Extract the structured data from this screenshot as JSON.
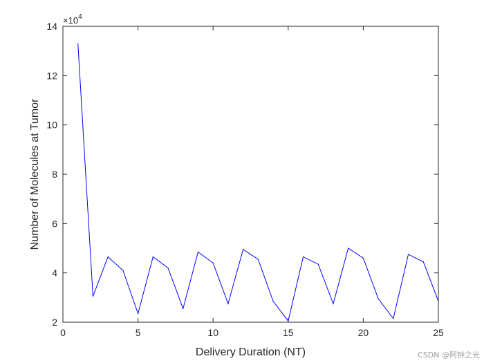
{
  "chart_data": {
    "type": "line",
    "title": "",
    "xlabel": "Delivery Duration (NT)",
    "ylabel": "Number of Molecules at Tumor",
    "y_exponent_label": "×10",
    "y_exponent_power": "4",
    "xlim": [
      0,
      25
    ],
    "ylim": [
      2,
      14
    ],
    "xticks": [
      0,
      5,
      10,
      15,
      20,
      25
    ],
    "yticks": [
      2,
      4,
      6,
      8,
      10,
      12,
      14
    ],
    "grid": false,
    "series": [
      {
        "color": "#0000ff",
        "x": [
          1,
          2,
          3,
          4,
          5,
          6,
          7,
          8,
          9,
          10,
          11,
          12,
          13,
          14,
          15,
          16,
          17,
          18,
          19,
          20,
          21,
          22,
          23,
          24,
          25
        ],
        "y": [
          13.3,
          3.05,
          4.65,
          4.1,
          2.35,
          4.65,
          4.2,
          2.55,
          4.85,
          4.4,
          2.75,
          4.95,
          4.55,
          2.85,
          2.05,
          4.65,
          4.35,
          2.75,
          5.0,
          4.6,
          2.95,
          2.15,
          4.75,
          4.45,
          2.85
        ]
      }
    ]
  },
  "watermark": "CSDN @阿钟之光"
}
